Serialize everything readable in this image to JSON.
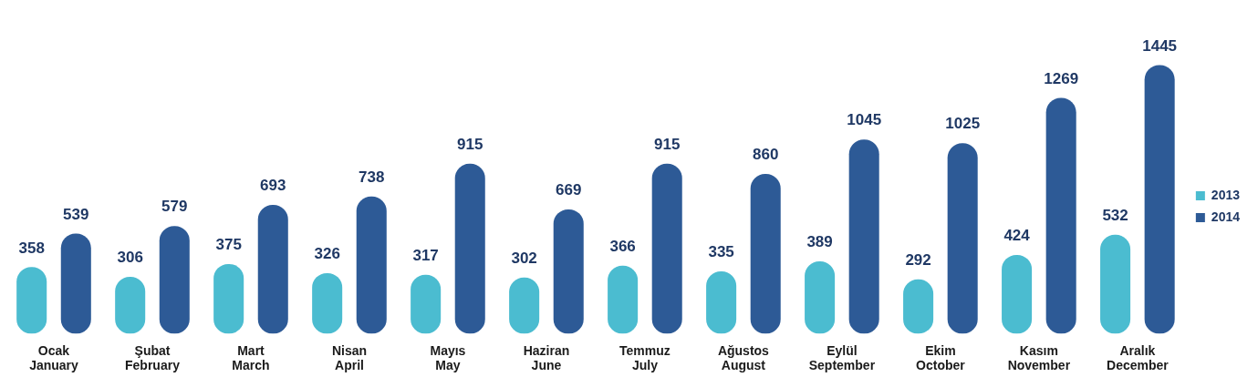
{
  "chart_data": {
    "type": "bar",
    "categories": [
      "Ocak\nJanuary",
      "Şubat\nFebruary",
      "Mart\nMarch",
      "Nisan\nApril",
      "Mayıs\nMay",
      "Haziran\nJune",
      "Temmuz\nJuly",
      "Ağustos\nAugust",
      "Eylül\nSeptember",
      "Ekim\nOctober",
      "Kasım\nNovember",
      "Aralık\nDecember"
    ],
    "series": [
      {
        "name": "2013",
        "color": "#4bbcd0",
        "values": [
          358,
          306,
          375,
          326,
          317,
          302,
          366,
          335,
          389,
          292,
          424,
          532
        ]
      },
      {
        "name": "2014",
        "color": "#2d5a96",
        "values": [
          539,
          579,
          693,
          738,
          915,
          669,
          915,
          860,
          1045,
          1025,
          1269,
          1445
        ]
      }
    ],
    "data_labels": true,
    "legend": "right",
    "grid": false
  }
}
